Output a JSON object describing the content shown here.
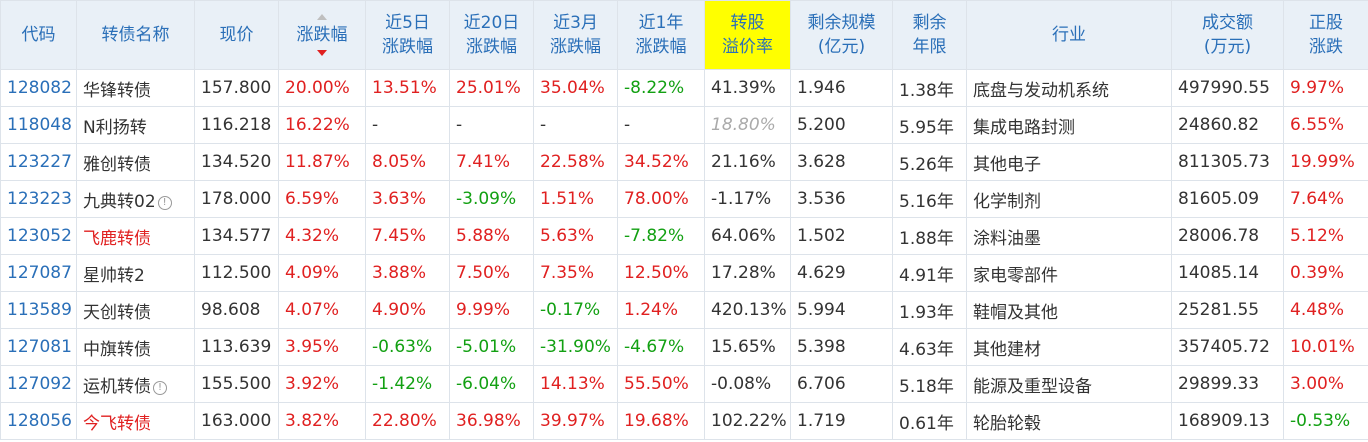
{
  "headers": [
    {
      "key": "code",
      "line1": "代码",
      "line2": ""
    },
    {
      "key": "name",
      "line1": "转债名称",
      "line2": ""
    },
    {
      "key": "price",
      "line1": "现价",
      "line2": ""
    },
    {
      "key": "change",
      "line1": "涨跌幅",
      "line2": ""
    },
    {
      "key": "d5",
      "line1": "近5日",
      "line2": "涨跌幅"
    },
    {
      "key": "d20",
      "line1": "近20日",
      "line2": "涨跌幅"
    },
    {
      "key": "m3",
      "line1": "近3月",
      "line2": "涨跌幅"
    },
    {
      "key": "y1",
      "line1": "近1年",
      "line2": "涨跌幅"
    },
    {
      "key": "premium",
      "line1": "转股",
      "line2": "溢价率"
    },
    {
      "key": "remain_scale",
      "line1": "剩余规模",
      "line2": "(亿元)"
    },
    {
      "key": "remain_years",
      "line1": "剩余",
      "line2": "年限"
    },
    {
      "key": "industry",
      "line1": "行业",
      "line2": ""
    },
    {
      "key": "turnover",
      "line1": "成交额",
      "line2": "(万元)"
    },
    {
      "key": "stock_change",
      "line1": "正股",
      "line2": "涨跌"
    }
  ],
  "sort": {
    "column": "change",
    "direction": "desc"
  },
  "highlight_column": "premium",
  "colors": {
    "up": "#e02020",
    "down": "#12a012",
    "link": "#2a6fb8",
    "highlight": "#ffff00"
  },
  "rows": [
    {
      "code": "128082",
      "name": "华锋转债",
      "name_red": false,
      "info": false,
      "price": "157.800",
      "change": "20.00%",
      "d5": "13.51%",
      "d20": "25.01%",
      "m3": "35.04%",
      "y1": "-8.22%",
      "premium": "41.39%",
      "premium_muted": false,
      "remain_scale": "1.946",
      "remain_years": "1.38年",
      "industry": "底盘与发动机系统",
      "turnover": "497990.55",
      "stock_change": "9.97%"
    },
    {
      "code": "118048",
      "name": "N利扬转",
      "name_red": false,
      "info": false,
      "price": "116.218",
      "change": "16.22%",
      "d5": "-",
      "d20": "-",
      "m3": "-",
      "y1": "-",
      "premium": "18.80%",
      "premium_muted": true,
      "remain_scale": "5.200",
      "remain_years": "5.95年",
      "industry": "集成电路封测",
      "turnover": "24860.82",
      "stock_change": "6.55%"
    },
    {
      "code": "123227",
      "name": "雅创转债",
      "name_red": false,
      "info": false,
      "price": "134.520",
      "change": "11.87%",
      "d5": "8.05%",
      "d20": "7.41%",
      "m3": "22.58%",
      "y1": "34.52%",
      "premium": "21.16%",
      "premium_muted": false,
      "remain_scale": "3.628",
      "remain_years": "5.26年",
      "industry": "其他电子",
      "turnover": "811305.73",
      "stock_change": "19.99%"
    },
    {
      "code": "123223",
      "name": "九典转02",
      "name_red": false,
      "info": true,
      "price": "178.000",
      "change": "6.59%",
      "d5": "3.63%",
      "d20": "-3.09%",
      "m3": "1.51%",
      "y1": "78.00%",
      "premium": "-1.17%",
      "premium_muted": false,
      "remain_scale": "3.536",
      "remain_years": "5.16年",
      "industry": "化学制剂",
      "turnover": "81605.09",
      "stock_change": "7.64%"
    },
    {
      "code": "123052",
      "name": "飞鹿转债",
      "name_red": true,
      "info": false,
      "price": "134.577",
      "change": "4.32%",
      "d5": "7.45%",
      "d20": "5.88%",
      "m3": "5.63%",
      "y1": "-7.82%",
      "premium": "64.06%",
      "premium_muted": false,
      "remain_scale": "1.502",
      "remain_years": "1.88年",
      "industry": "涂料油墨",
      "turnover": "28006.78",
      "stock_change": "5.12%"
    },
    {
      "code": "127087",
      "name": "星帅转2",
      "name_red": false,
      "info": false,
      "price": "112.500",
      "change": "4.09%",
      "d5": "3.88%",
      "d20": "7.50%",
      "m3": "7.35%",
      "y1": "12.50%",
      "premium": "17.28%",
      "premium_muted": false,
      "remain_scale": "4.629",
      "remain_years": "4.91年",
      "industry": "家电零部件",
      "turnover": "14085.14",
      "stock_change": "0.39%"
    },
    {
      "code": "113589",
      "name": "天创转债",
      "name_red": false,
      "info": false,
      "price": "98.608",
      "change": "4.07%",
      "d5": "4.90%",
      "d20": "9.99%",
      "m3": "-0.17%",
      "y1": "1.24%",
      "premium": "420.13%",
      "premium_muted": false,
      "remain_scale": "5.994",
      "remain_years": "1.93年",
      "industry": "鞋帽及其他",
      "turnover": "25281.55",
      "stock_change": "4.48%"
    },
    {
      "code": "127081",
      "name": "中旗转债",
      "name_red": false,
      "info": false,
      "price": "113.639",
      "change": "3.95%",
      "d5": "-0.63%",
      "d20": "-5.01%",
      "m3": "-31.90%",
      "y1": "-4.67%",
      "premium": "15.65%",
      "premium_muted": false,
      "remain_scale": "5.398",
      "remain_years": "4.63年",
      "industry": "其他建材",
      "turnover": "357405.72",
      "stock_change": "10.01%"
    },
    {
      "code": "127092",
      "name": "运机转债",
      "name_red": false,
      "info": true,
      "price": "155.500",
      "change": "3.92%",
      "d5": "-1.42%",
      "d20": "-6.04%",
      "m3": "14.13%",
      "y1": "55.50%",
      "premium": "-0.08%",
      "premium_muted": false,
      "remain_scale": "6.706",
      "remain_years": "5.18年",
      "industry": "能源及重型设备",
      "turnover": "29899.33",
      "stock_change": "3.00%"
    },
    {
      "code": "128056",
      "name": "今飞转债",
      "name_red": true,
      "info": false,
      "price": "163.000",
      "change": "3.82%",
      "d5": "22.80%",
      "d20": "36.98%",
      "m3": "39.97%",
      "y1": "19.68%",
      "premium": "102.22%",
      "premium_muted": false,
      "remain_scale": "1.719",
      "remain_years": "0.61年",
      "industry": "轮胎轮毂",
      "turnover": "168909.13",
      "stock_change": "-0.53%"
    }
  ]
}
